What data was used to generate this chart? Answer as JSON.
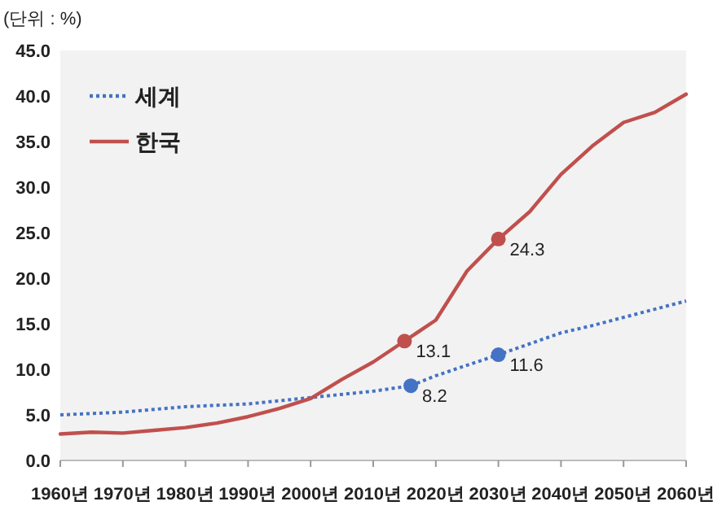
{
  "chart_data": {
    "type": "line",
    "ylabel": "(단위 : %)",
    "x": [
      1960,
      1965,
      1970,
      1975,
      1980,
      1985,
      1990,
      1995,
      2000,
      2005,
      2010,
      2015,
      2020,
      2025,
      2030,
      2035,
      2040,
      2045,
      2050,
      2055,
      2060
    ],
    "series": [
      {
        "name": "세계",
        "color": "#4472c4",
        "line_style": "dotted",
        "x": [
          1960,
          1970,
          1980,
          1990,
          2000,
          2010,
          2016,
          2020,
          2030,
          2040,
          2045,
          2050,
          2060
        ],
        "values": [
          5.0,
          5.3,
          5.9,
          6.2,
          6.9,
          7.6,
          8.2,
          9.3,
          11.6,
          14.0,
          14.8,
          15.7,
          17.5
        ]
      },
      {
        "name": "한국",
        "color": "#c0504d",
        "line_style": "solid",
        "values": [
          2.9,
          3.1,
          3.0,
          3.3,
          3.6,
          4.1,
          4.8,
          5.7,
          6.8,
          8.9,
          10.8,
          13.1,
          15.4,
          20.8,
          24.3,
          27.3,
          31.4,
          34.5,
          37.1,
          38.2,
          40.2
        ]
      },
      {
        "type": "scatter",
        "color": "#4472c4",
        "marker": "circle",
        "x": [
          2016,
          2030
        ],
        "values": [
          8.2,
          11.6
        ],
        "value_labels": [
          "8.2",
          "11.6"
        ]
      },
      {
        "type": "scatter",
        "color": "#c0504d",
        "marker": "circle",
        "x": [
          2015,
          2030
        ],
        "values": [
          13.1,
          24.3
        ],
        "value_labels": [
          "13.1",
          "24.3"
        ]
      }
    ],
    "xlim": [
      1960,
      2060
    ],
    "xticks": [
      {
        "value": 1960,
        "label": "1960년"
      },
      {
        "value": 1970,
        "label": "1970년"
      },
      {
        "value": 1980,
        "label": "1980년"
      },
      {
        "value": 1990,
        "label": "1990년"
      },
      {
        "value": 2000,
        "label": "2000년"
      },
      {
        "value": 2010,
        "label": "2010년"
      },
      {
        "value": 2020,
        "label": "2020년"
      },
      {
        "value": 2030,
        "label": "2030년"
      },
      {
        "value": 2040,
        "label": "2040년"
      },
      {
        "value": 2050,
        "label": "2050년"
      },
      {
        "value": 2060,
        "label": "2060년"
      }
    ],
    "ylim": [
      0,
      45
    ],
    "yticks": [
      {
        "value": 0,
        "label": "0.0"
      },
      {
        "value": 5,
        "label": "5.0"
      },
      {
        "value": 10,
        "label": "10.0"
      },
      {
        "value": 15,
        "label": "15.0"
      },
      {
        "value": 20,
        "label": "20.0"
      },
      {
        "value": 25,
        "label": "25.0"
      },
      {
        "value": 30,
        "label": "30.0"
      },
      {
        "value": 35,
        "label": "35.0"
      },
      {
        "value": 40,
        "label": "40.0"
      },
      {
        "value": 45,
        "label": "45.0"
      }
    ],
    "legend": "top left"
  }
}
